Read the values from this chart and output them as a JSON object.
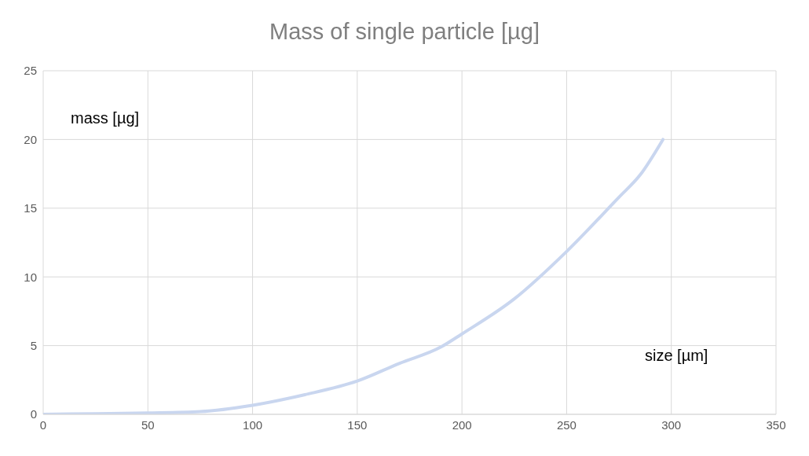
{
  "chart_data": {
    "type": "line",
    "title": "Mass of single particle [µg]",
    "xlabel": "size [µm]",
    "ylabel": "mass [µg]",
    "x": [
      0,
      25,
      50,
      75,
      100,
      125,
      150,
      170,
      190,
      200,
      225,
      250,
      275,
      285,
      296
    ],
    "series": [
      {
        "color": "#c9d6ef",
        "values": [
          0,
          0.05,
          0.1,
          0.2,
          0.66,
          1.43,
          2.42,
          3.7,
          4.9,
          5.85,
          8.4,
          11.85,
          15.8,
          17.4,
          20
        ]
      }
    ],
    "xlim": [
      0,
      350
    ],
    "xticks": [
      0,
      50,
      100,
      150,
      200,
      250,
      300,
      350
    ],
    "ylim": [
      0,
      25
    ],
    "yticks": [
      0,
      5,
      10,
      15,
      20,
      25
    ],
    "grid": true,
    "legend": false,
    "marker": "none",
    "line_style": "solid"
  }
}
